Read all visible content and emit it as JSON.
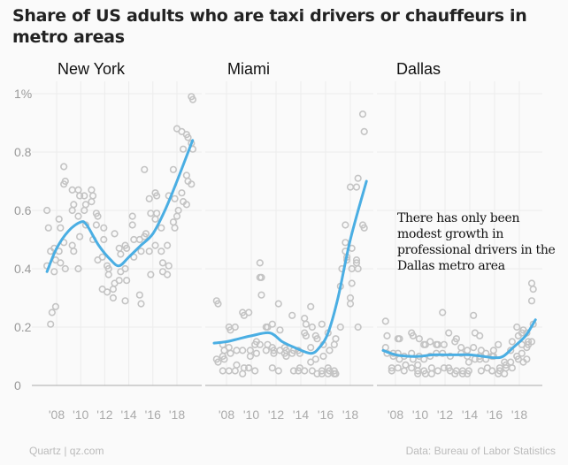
{
  "chart_data": {
    "type": "scatter",
    "title": "Share of US adults who are taxi drivers or chauffeurs in metro areas",
    "ylim": [
      0,
      1.05
    ],
    "y_ticks": [
      "0",
      "0.2",
      "0.4",
      "0.6",
      "0.8",
      "1%"
    ],
    "y_tick_values": [
      0,
      0.2,
      0.4,
      0.6,
      0.8,
      1.0
    ],
    "x_ticks": [
      "'08",
      "'10",
      "'12",
      "'14",
      "'16",
      "'18"
    ],
    "x_tick_values": [
      2008,
      2010,
      2012,
      2014,
      2016,
      2018
    ],
    "xlim": [
      2006.5,
      2019.6
    ],
    "grid": true,
    "colors": {
      "points": "#c4c4c4",
      "trend": "#4aaee3",
      "grid": "#ececec",
      "axis": "#aaaaaa"
    },
    "panels": [
      {
        "name": "New York",
        "points": [
          [
            2007.2,
            [
              0.6,
              0.54,
              0.41
            ]
          ],
          [
            2007.5,
            [
              0.46,
              0.25,
              0.21
            ]
          ],
          [
            2007.8,
            [
              0.47,
              0.43,
              0.39,
              0.27
            ]
          ],
          [
            2008.2,
            [
              0.46,
              0.42,
              0.57,
              0.54
            ]
          ],
          [
            2008.6,
            [
              0.75,
              0.7,
              0.69,
              0.4,
              0.49
            ]
          ],
          [
            2009.3,
            [
              0.67,
              0.62,
              0.6,
              0.46,
              0.48
            ]
          ],
          [
            2009.8,
            [
              0.67,
              0.65,
              0.58,
              0.51,
              0.4
            ]
          ],
          [
            2010.3,
            [
              0.65,
              0.62,
              0.6,
              0.55
            ]
          ],
          [
            2010.9,
            [
              0.67,
              0.65,
              0.63,
              0.5
            ]
          ],
          [
            2011.3,
            [
              0.55,
              0.43,
              0.59,
              0.58
            ]
          ],
          [
            2011.8,
            [
              0.44,
              0.54,
              0.33,
              0.5
            ]
          ],
          [
            2012.2,
            [
              0.41,
              0.4,
              0.32,
              0.38
            ]
          ],
          [
            2012.7,
            [
              0.3,
              0.35,
              0.33,
              0.52
            ]
          ],
          [
            2013.2,
            [
              0.47,
              0.45,
              0.36,
              0.39
            ]
          ],
          [
            2013.7,
            [
              0.48,
              0.47,
              0.4,
              0.36,
              0.29
            ]
          ],
          [
            2014.3,
            [
              0.58,
              0.5,
              0.55,
              0.44
            ]
          ],
          [
            2014.9,
            [
              0.31,
              0.28,
              0.5,
              0.46
            ]
          ],
          [
            2015.3,
            [
              0.74,
              0.52,
              0.51
            ]
          ],
          [
            2015.7,
            [
              0.64,
              0.59,
              0.46,
              0.38
            ]
          ],
          [
            2016.2,
            [
              0.66,
              0.65,
              0.57,
              0.59,
              0.48
            ]
          ],
          [
            2016.7,
            [
              0.46,
              0.42,
              0.54,
              0.39
            ]
          ],
          [
            2017.2,
            [
              0.48,
              0.41,
              0.38,
              0.65
            ]
          ],
          [
            2017.7,
            [
              0.74,
              0.64,
              0.56,
              0.54
            ]
          ],
          [
            2018.0,
            [
              0.88,
              0.6,
              0.58
            ]
          ],
          [
            2018.4,
            [
              0.87,
              0.81,
              0.66,
              0.63
            ]
          ],
          [
            2018.8,
            [
              0.86,
              0.85,
              0.72,
              0.7,
              0.62
            ]
          ],
          [
            2019.2,
            [
              0.99,
              0.98,
              0.83,
              0.81,
              0.69
            ]
          ]
        ],
        "trend": [
          [
            2007.2,
            0.39
          ],
          [
            2008,
            0.47
          ],
          [
            2009,
            0.53
          ],
          [
            2010,
            0.56
          ],
          [
            2010.5,
            0.55
          ],
          [
            2011.5,
            0.48
          ],
          [
            2012.5,
            0.43
          ],
          [
            2013.2,
            0.41
          ],
          [
            2014,
            0.44
          ],
          [
            2015,
            0.48
          ],
          [
            2016,
            0.52
          ],
          [
            2017,
            0.6
          ],
          [
            2018,
            0.7
          ],
          [
            2019.3,
            0.84
          ]
        ]
      },
      {
        "name": "Miami",
        "points": [
          [
            2007.2,
            [
              0.29,
              0.28,
              0.09,
              0.08
            ]
          ],
          [
            2007.7,
            [
              0.14,
              0.12,
              0.1,
              0.09,
              0.05
            ]
          ],
          [
            2008.2,
            [
              0.2,
              0.19,
              0.13,
              0.11,
              0.05
            ]
          ],
          [
            2008.7,
            [
              0.2,
              0.07,
              0.05,
              0.12
            ]
          ],
          [
            2009.3,
            [
              0.25,
              0.24,
              0.12,
              0.06,
              0.04
            ]
          ],
          [
            2009.8,
            [
              0.06,
              0.12,
              0.06,
              0.1,
              0.25
            ]
          ],
          [
            2010.3,
            [
              0.14,
              0.11,
              0.05,
              0.15
            ]
          ],
          [
            2010.7,
            [
              0.42,
              0.37,
              0.37,
              0.31,
              0.14
            ]
          ],
          [
            2011.2,
            [
              0.2,
              0.2,
              0.12,
              0.14
            ]
          ],
          [
            2011.7,
            [
              0.21,
              0.11,
              0.06,
              0.12,
              0.13
            ]
          ],
          [
            2012.2,
            [
              0.28,
              0.19,
              0.05,
              0.12
            ]
          ],
          [
            2012.7,
            [
              0.11,
              0.12,
              0.13,
              0.1
            ]
          ],
          [
            2013.3,
            [
              0.24,
              0.05,
              0.11,
              0.12
            ]
          ],
          [
            2013.8,
            [
              0.05,
              0.06,
              0.12,
              0.11
            ]
          ],
          [
            2014.3,
            [
              0.18,
              0.17,
              0.23,
              0.21,
              0.05
            ]
          ],
          [
            2014.8,
            [
              0.27,
              0.2,
              0.13,
              0.05,
              0.08
            ]
          ],
          [
            2015.2,
            [
              0.17,
              0.16,
              0.09,
              0.04
            ]
          ],
          [
            2015.7,
            [
              0.21,
              0.14,
              0.04,
              0.1,
              0.05
            ]
          ],
          [
            2016.2,
            [
              0.18,
              0.05,
              0.06,
              0.12,
              0.04
            ]
          ],
          [
            2016.7,
            [
              0.05,
              0.04,
              0.04,
              0.16,
              0.14
            ]
          ],
          [
            2017.2,
            [
              0.34,
              0.4,
              0.2
            ]
          ],
          [
            2017.6,
            [
              0.49,
              0.44,
              0.55,
              0.43,
              0.46
            ]
          ],
          [
            2018.0,
            [
              0.68,
              0.4,
              0.3,
              0.35,
              0.28,
              0.47
            ]
          ],
          [
            2018.5,
            [
              0.68,
              0.71,
              0.42,
              0.2,
              0.43,
              0.4
            ]
          ],
          [
            2019.0,
            [
              0.93,
              0.87,
              0.55,
              0.54
            ]
          ]
        ],
        "trend": [
          [
            2007,
            0.145
          ],
          [
            2008,
            0.15
          ],
          [
            2009,
            0.16
          ],
          [
            2010,
            0.17
          ],
          [
            2011.5,
            0.18
          ],
          [
            2012.5,
            0.15
          ],
          [
            2013.5,
            0.13
          ],
          [
            2014.8,
            0.11
          ],
          [
            2015.5,
            0.13
          ],
          [
            2016.2,
            0.18
          ],
          [
            2017,
            0.3
          ],
          [
            2018,
            0.5
          ],
          [
            2019.3,
            0.7
          ]
        ]
      },
      {
        "name": "Dallas",
        "annotation": "There has only been modest growth in professional drivers in the Dallas metro area",
        "points": [
          [
            2007.2,
            [
              0.22,
              0.17,
              0.13,
              0.11
            ]
          ],
          [
            2007.7,
            [
              0.05,
              0.1,
              0.06,
              0.11
            ]
          ],
          [
            2008.2,
            [
              0.16,
              0.16,
              0.06,
              0.09,
              0.11
            ]
          ],
          [
            2008.7,
            [
              0.05,
              0.07,
              0.1,
              0.07
            ]
          ],
          [
            2009.3,
            [
              0.18,
              0.17,
              0.11,
              0.09,
              0.06
            ]
          ],
          [
            2009.8,
            [
              0.05,
              0.16,
              0.07,
              0.1,
              0.04
            ]
          ],
          [
            2010.3,
            [
              0.14,
              0.14,
              0.05,
              0.04,
              0.09
            ]
          ],
          [
            2010.8,
            [
              0.15,
              0.06,
              0.1,
              0.04
            ]
          ],
          [
            2011.3,
            [
              0.14,
              0.14,
              0.11,
              0.05
            ]
          ],
          [
            2011.8,
            [
              0.25,
              0.14,
              0.11,
              0.06
            ]
          ],
          [
            2012.3,
            [
              0.18,
              0.05,
              0.06,
              0.1
            ]
          ],
          [
            2012.8,
            [
              0.15,
              0.16,
              0.04,
              0.05
            ]
          ],
          [
            2013.3,
            [
              0.13,
              0.05,
              0.11,
              0.04
            ]
          ],
          [
            2013.8,
            [
              0.12,
              0.08,
              0.04,
              0.05,
              0.1
            ]
          ],
          [
            2014.3,
            [
              0.24,
              0.18,
              0.13,
              0.09
            ]
          ],
          [
            2014.8,
            [
              0.17,
              0.12,
              0.1,
              0.05,
              0.09
            ]
          ],
          [
            2015.3,
            [
              0.11,
              0.06,
              0.09
            ]
          ],
          [
            2015.8,
            [
              0.05,
              0.12,
              0.1,
              0.1,
              0.05
            ]
          ],
          [
            2016.3,
            [
              0.14,
              0.05,
              0.04,
              0.06
            ]
          ],
          [
            2016.8,
            [
              0.04,
              0.07,
              0.08,
              0.06
            ]
          ],
          [
            2017.3,
            [
              0.12,
              0.15,
              0.08,
              0.06
            ]
          ],
          [
            2017.8,
            [
              0.2,
              0.17,
              0.1,
              0.09
            ]
          ],
          [
            2018.2,
            [
              0.18,
              0.19,
              0.14,
              0.08,
              0.11
            ]
          ],
          [
            2018.6,
            [
              0.13,
              0.15,
              0.18,
              0.14,
              0.09
            ]
          ],
          [
            2019.0,
            [
              0.35,
              0.33,
              0.29,
              0.21,
              0.15
            ]
          ]
        ],
        "trend": [
          [
            2007,
            0.12
          ],
          [
            2008,
            0.105
          ],
          [
            2009,
            0.1
          ],
          [
            2010,
            0.1
          ],
          [
            2011,
            0.105
          ],
          [
            2012,
            0.105
          ],
          [
            2013,
            0.105
          ],
          [
            2014,
            0.105
          ],
          [
            2015,
            0.1
          ],
          [
            2016,
            0.095
          ],
          [
            2016.7,
            0.1
          ],
          [
            2017.5,
            0.13
          ],
          [
            2018.5,
            0.17
          ],
          [
            2019.3,
            0.225
          ]
        ]
      }
    ]
  },
  "footer": {
    "left": "Quartz | qz.com",
    "right": "Data: Bureau of Labor Statistics"
  }
}
